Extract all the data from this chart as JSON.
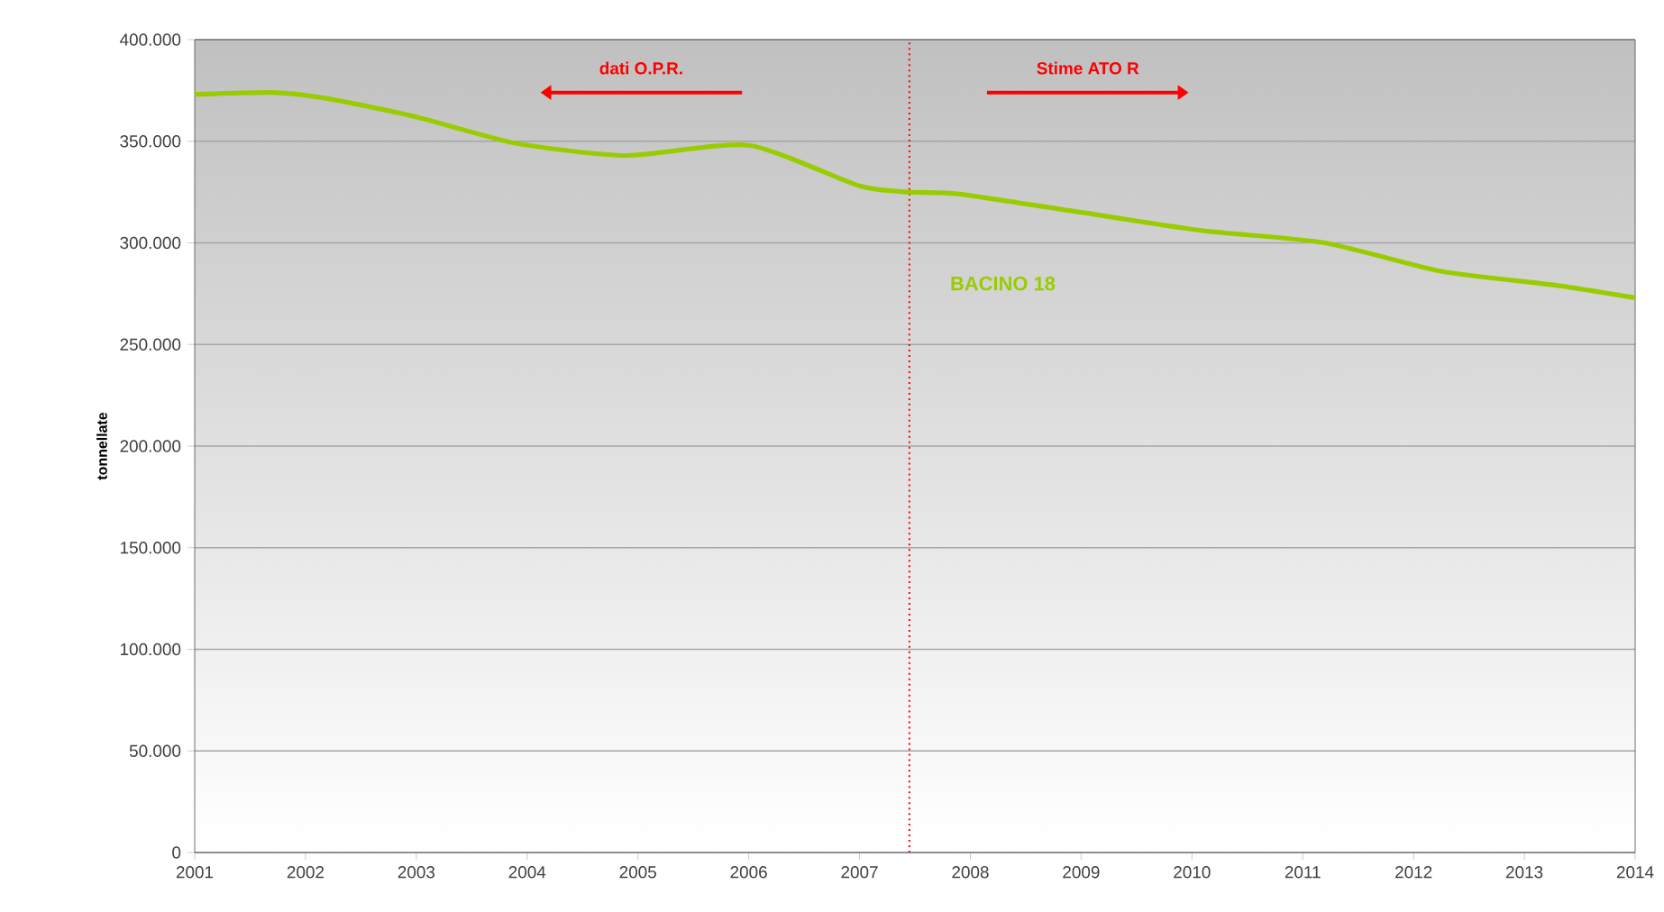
{
  "chart_data": {
    "type": "line",
    "ylabel": "tonnellate",
    "x": [
      2001,
      2001.7,
      2002.2,
      2003.0,
      2003.9,
      2004.9,
      2006.0,
      2007.0,
      2007.45,
      2007.9,
      2009.0,
      2010.1,
      2011.2,
      2012.25,
      2013.3,
      2014
    ],
    "series": [
      {
        "name": "BACINO 18",
        "color": "#99cc00",
        "values": [
          373000,
          374000,
          371000,
          362000,
          349000,
          343000,
          348000,
          328000,
          325000,
          324000,
          315000,
          306000,
          300000,
          286000,
          279000,
          273000
        ]
      }
    ],
    "xlim": [
      2001,
      2014
    ],
    "xticks": [
      2001,
      2002,
      2003,
      2004,
      2005,
      2006,
      2007,
      2008,
      2009,
      2010,
      2011,
      2012,
      2013,
      2014
    ],
    "ylim": [
      0,
      400000
    ],
    "yticks": [
      {
        "value": 0,
        "label": "0"
      },
      {
        "value": 50000,
        "label": "50.000"
      },
      {
        "value": 100000,
        "label": "100.000"
      },
      {
        "value": 150000,
        "label": "150.000"
      },
      {
        "value": 200000,
        "label": "200.000"
      },
      {
        "value": 250000,
        "label": "250.000"
      },
      {
        "value": 300000,
        "label": "300.000"
      },
      {
        "value": 350000,
        "label": "350.000"
      },
      {
        "value": 400000,
        "label": "400.000"
      }
    ],
    "grid": "y",
    "marker": "none",
    "line_style": "solid",
    "ref_lines": [
      {
        "axis": "x",
        "value": 2007.45,
        "color": "#ff0000",
        "line_style": "dotted"
      }
    ],
    "annotations": [
      "dati O.P.R.",
      "Stime ATO R"
    ]
  }
}
